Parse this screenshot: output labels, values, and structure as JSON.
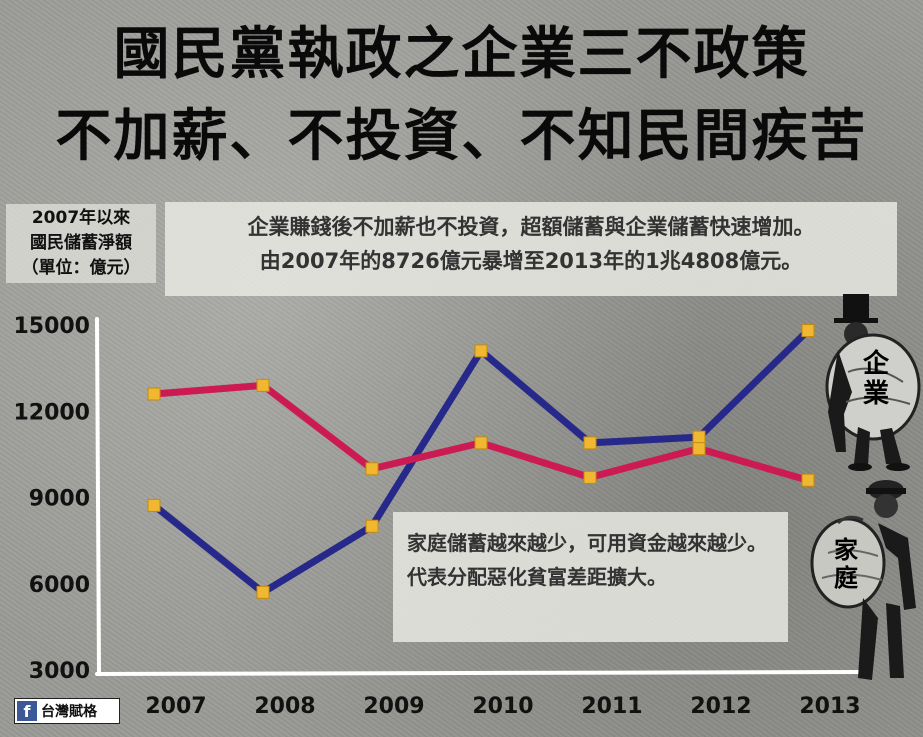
{
  "title": {
    "line1": "國民黨執政之企業三不政策",
    "line2": "不加薪、不投資、不知民間疾苦"
  },
  "y_axis_label": {
    "line1": "2007年以來",
    "line2": "國民儲蓄淨額",
    "line3": "（單位：億元）"
  },
  "note_top": {
    "line1": "企業賺錢後不加薪也不投資，超額儲蓄與企業儲蓄快速增加。",
    "line2": "由2007年的8726億元暴增至2013年的1兆4808億元。"
  },
  "note_bottom": {
    "text": "家庭儲蓄越來越少，可用資金越來越少。代表分配惡化貧富差距擴大。"
  },
  "figures": {
    "corporate_label": "企業",
    "household_label": "家庭"
  },
  "source": {
    "icon": "facebook-icon",
    "icon_glyph": "f",
    "text": "台灣賦格"
  },
  "colors": {
    "corporate": "#27298a",
    "household": "#cc1a55",
    "marker": "#f0b830"
  },
  "chart_data": {
    "type": "line",
    "categories": [
      "2007",
      "2008",
      "2009",
      "2010",
      "2011",
      "2012",
      "2013"
    ],
    "series": [
      {
        "name": "企業",
        "values": [
          8726,
          5700,
          8000,
          14100,
          10900,
          11100,
          14808
        ]
      },
      {
        "name": "家庭",
        "values": [
          12600,
          12900,
          10000,
          10900,
          9700,
          10700,
          9600
        ]
      }
    ],
    "yticks": [
      3000,
      6000,
      9000,
      12000,
      15000
    ],
    "ylim": [
      3000,
      15000
    ],
    "grid": false
  }
}
